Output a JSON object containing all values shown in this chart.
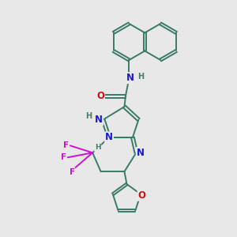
{
  "bg_color": "#e8e8e8",
  "bond_color": "#3a7a68",
  "N_color": "#1a1acc",
  "O_color": "#cc1111",
  "F_color": "#cc11cc",
  "H_color": "#4a7a68",
  "line_width": 1.4,
  "dbo": 0.055,
  "font_size": 8.5,
  "fig_size": [
    3.0,
    3.0
  ],
  "dpi": 100,
  "xlim": [
    0,
    10
  ],
  "ylim": [
    0,
    10
  ]
}
